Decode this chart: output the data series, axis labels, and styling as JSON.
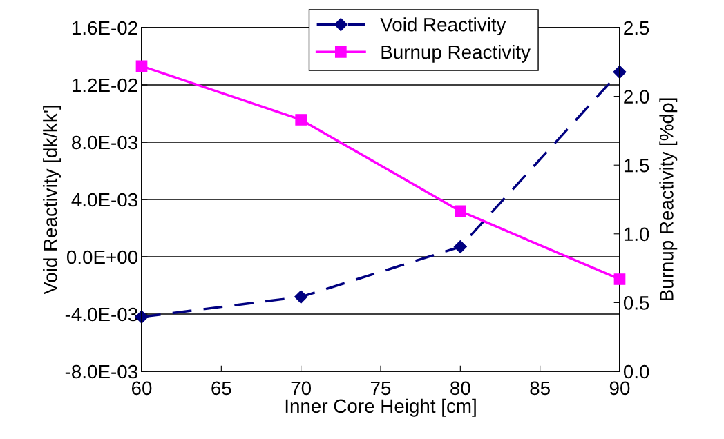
{
  "chart_data": {
    "type": "line",
    "xlabel": "Inner Core Height [cm]",
    "ylabel": "Void Reactivity [dk/kk']",
    "y2label": "Burnup Reactivity [%dρ]",
    "x": [
      60,
      70,
      80,
      90
    ],
    "series": [
      {
        "name": "Void Reactivity",
        "color": "#000080",
        "values": [
          -0.0042,
          -0.0028,
          0.0007,
          0.0129
        ],
        "marker": "diamond",
        "line_style": "dashed"
      },
      {
        "name": "Burnup Reactivity",
        "color": "#ff00ff",
        "values": [
          2.22,
          1.83,
          1.165,
          0.67
        ],
        "marker": "square",
        "line_style": "solid",
        "axis": "y2"
      }
    ],
    "xlim": [
      60,
      90
    ],
    "xticks": [
      60,
      65,
      70,
      75,
      80,
      85,
      90
    ],
    "ylim": [
      -0.008,
      0.016
    ],
    "yticks": [
      {
        "value": -0.008,
        "label": "-8.0E-03"
      },
      {
        "value": -0.004,
        "label": "-4.0E-03"
      },
      {
        "value": 0,
        "label": "0.0E+00"
      },
      {
        "value": 0.004,
        "label": "4.0E-03"
      },
      {
        "value": 0.008,
        "label": "8.0E-03"
      },
      {
        "value": 0.012,
        "label": "1.2E-02"
      },
      {
        "value": 0.016,
        "label": "1.6E-02"
      }
    ],
    "y2lim": [
      0,
      2.5
    ],
    "y2ticks": [
      {
        "value": 0,
        "label": "0.0"
      },
      {
        "value": 0.5,
        "label": "0.5"
      },
      {
        "value": 1,
        "label": "1.0"
      },
      {
        "value": 1.5,
        "label": "1.5"
      },
      {
        "value": 2,
        "label": "2.0"
      },
      {
        "value": 2.5,
        "label": "2.5"
      }
    ],
    "grid": "y",
    "legend": "top"
  }
}
